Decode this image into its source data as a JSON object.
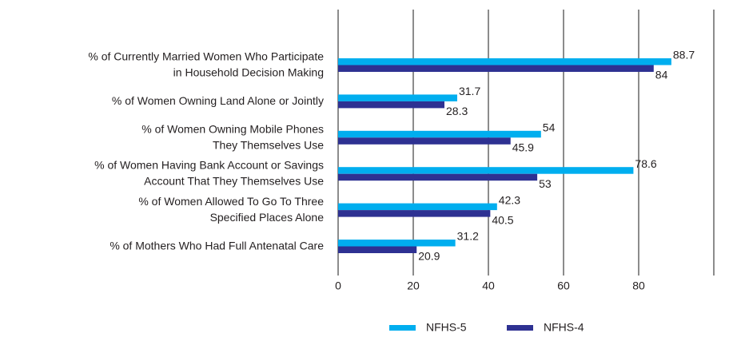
{
  "chart_data": {
    "type": "bar",
    "orientation": "horizontal",
    "categories": [
      [
        "% of Currently Married Women Who Participate",
        "in Household Decision Making"
      ],
      [
        "% of Women Owning Land Alone or Jointly"
      ],
      [
        "% of Women Owning Mobile Phones",
        "They Themselves Use"
      ],
      [
        "% of Women Having Bank Account or Savings",
        "Account That They Themselves Use"
      ],
      [
        "% of Women Allowed To Go To Three",
        "Specified Places Alone"
      ],
      [
        "% of Mothers Who Had Full Antenatal Care"
      ]
    ],
    "series": [
      {
        "name": "NFHS-5",
        "color": "#00aeef",
        "values": [
          88.7,
          31.7,
          54,
          78.6,
          42.3,
          31.2
        ]
      },
      {
        "name": "NFHS-4",
        "color": "#2e3192",
        "values": [
          84,
          28.3,
          45.9,
          53,
          40.5,
          20.9
        ]
      }
    ],
    "xlim": [
      0,
      100
    ],
    "xticks": [
      0,
      20,
      40,
      60,
      80
    ],
    "grid": true,
    "legend": "bottom"
  }
}
